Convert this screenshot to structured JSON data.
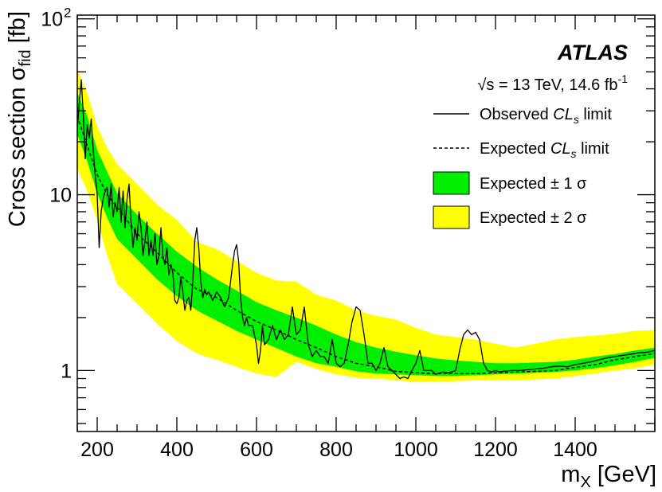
{
  "chart_data": {
    "type": "line",
    "experiment_label": "ATLAS",
    "energy_label": "√s = 13 TeV, 14.6 fb",
    "energy_label_sup": "-1",
    "xlabel": "m",
    "xlabel_sub": "X",
    "xlabel_unit": " [GeV]",
    "ylabel": "Cross section σ",
    "ylabel_sub": "fid",
    "ylabel_unit": " [fb]",
    "x_scale": "linear",
    "y_scale": "log",
    "xlim": [
      150,
      1600
    ],
    "ylim": [
      0.45,
      105
    ],
    "x_ticks": [
      200,
      400,
      600,
      800,
      1000,
      1200,
      1400
    ],
    "y_ticks": [
      {
        "value": 1,
        "label": "1"
      },
      {
        "value": 10,
        "label": "10"
      },
      {
        "value": 100,
        "label": "10",
        "sup": "2"
      }
    ],
    "grid": false,
    "legend_position": "top-right",
    "legend": [
      {
        "style": "solid-line",
        "text": "Observed ",
        "italic": "CL",
        "sub": "s",
        "tail": " limit"
      },
      {
        "style": "dashed-line",
        "text": "Expected ",
        "italic": "CL",
        "sub": "s",
        "tail": " limit"
      },
      {
        "style": "box",
        "color": "#00ee00",
        "text": "Expected ± 1 σ"
      },
      {
        "style": "box",
        "color": "#ffff00",
        "text": "Expected ± 2 σ"
      }
    ],
    "colors": {
      "band_1sigma": "#00ee00",
      "band_2sigma": "#ffff00",
      "lines": "#000000"
    },
    "series": [
      {
        "name": "Observed CLs limit",
        "style": "solid",
        "x": [
          150,
          155,
          160,
          165,
          170,
          175,
          180,
          185,
          190,
          195,
          200,
          205,
          210,
          215,
          220,
          225,
          230,
          235,
          240,
          245,
          250,
          255,
          260,
          265,
          270,
          275,
          280,
          285,
          290,
          295,
          300,
          305,
          310,
          315,
          320,
          325,
          330,
          335,
          340,
          345,
          350,
          355,
          360,
          365,
          370,
          375,
          380,
          385,
          390,
          395,
          400,
          405,
          410,
          415,
          420,
          425,
          430,
          435,
          440,
          445,
          450,
          455,
          460,
          465,
          470,
          475,
          480,
          490,
          500,
          510,
          520,
          530,
          540,
          545,
          550,
          555,
          560,
          565,
          570,
          575,
          580,
          590,
          600,
          605,
          610,
          615,
          620,
          630,
          640,
          650,
          660,
          670,
          680,
          690,
          700,
          710,
          720,
          730,
          740,
          750,
          760,
          770,
          780,
          790,
          800,
          810,
          820,
          830,
          840,
          850,
          860,
          870,
          880,
          890,
          900,
          910,
          920,
          930,
          940,
          950,
          960,
          970,
          980,
          990,
          1000,
          1010,
          1020,
          1030,
          1040,
          1050,
          1060,
          1070,
          1080,
          1090,
          1100,
          1110,
          1120,
          1130,
          1140,
          1150,
          1160,
          1170,
          1180,
          1190,
          1200,
          1210,
          1220,
          1240,
          1260,
          1280,
          1300,
          1320,
          1340,
          1360,
          1380,
          1400,
          1420,
          1440,
          1460,
          1480,
          1500,
          1520,
          1540,
          1560,
          1580,
          1600
        ],
        "y": [
          24,
          33,
          45,
          29,
          16,
          25,
          21,
          27,
          18,
          13,
          10,
          5,
          8,
          9.5,
          10.5,
          11,
          8.5,
          11.5,
          7.5,
          9,
          8,
          11,
          7,
          10.5,
          6.5,
          9.5,
          11.5,
          7,
          5,
          6.5,
          5.5,
          8,
          6.5,
          4.5,
          5.5,
          7,
          4.5,
          5.5,
          4.5,
          6,
          4,
          4.5,
          6.5,
          4.5,
          4,
          5,
          3.5,
          4,
          3.6,
          2.5,
          2.4,
          2.6,
          3.4,
          2.8,
          2.2,
          2.5,
          2.6,
          2.2,
          3.2,
          5.5,
          6.5,
          5,
          3.2,
          2.6,
          2.9,
          2.7,
          2.8,
          2.5,
          2.8,
          2.6,
          2.3,
          2.6,
          4,
          4.8,
          5.2,
          4.2,
          2.6,
          2,
          1.8,
          2,
          1.8,
          1.8,
          1.4,
          1.1,
          1.3,
          1.8,
          1.4,
          1.5,
          1.8,
          1.5,
          1.7,
          1.5,
          1.6,
          2.3,
          1.6,
          1.7,
          2.3,
          1.4,
          1.2,
          1.3,
          1.2,
          1.2,
          1.1,
          1.5,
          1.1,
          1.05,
          1.1,
          1.4,
          1.9,
          2.3,
          2.2,
          1.6,
          1.1,
          1.1,
          1.0,
          1.1,
          1.35,
          1.05,
          1.0,
          0.95,
          0.9,
          0.92,
          0.9,
          1.0,
          1.1,
          1.3,
          1.0,
          1.0,
          1.0,
          0.95,
          0.97,
          0.98,
          0.97,
          0.98,
          1.0,
          1.3,
          1.6,
          1.7,
          1.6,
          1.65,
          1.5,
          1.1,
          1.0,
          0.98,
          1.0,
          0.98,
          0.99,
          1.0,
          1.0,
          1.01,
          1.02,
          1.03,
          1.05,
          1.06,
          1.05,
          1.08,
          1.1,
          1.12,
          1.15,
          1.18,
          1.2,
          1.22,
          1.24,
          1.26,
          1.27,
          1.3
        ]
      },
      {
        "name": "Expected CLs limit",
        "style": "dashed",
        "x": [
          150,
          175,
          200,
          225,
          250,
          300,
          350,
          400,
          450,
          500,
          550,
          600,
          650,
          700,
          750,
          800,
          850,
          900,
          950,
          1000,
          1050,
          1100,
          1150,
          1200,
          1250,
          1300,
          1350,
          1400,
          1450,
          1500,
          1550,
          1600
        ],
        "y": [
          28,
          19,
          13,
          10,
          8.5,
          6,
          4.7,
          3.6,
          2.9,
          2.6,
          2.2,
          1.9,
          1.7,
          1.5,
          1.35,
          1.2,
          1.1,
          1.05,
          0.99,
          0.97,
          0.96,
          0.96,
          0.96,
          0.97,
          0.98,
          0.99,
          1.0,
          1.04,
          1.08,
          1.15,
          1.2,
          1.25
        ]
      }
    ],
    "bands": [
      {
        "name": "Expected ± 2 σ",
        "x": [
          150,
          175,
          200,
          225,
          250,
          300,
          350,
          400,
          450,
          500,
          550,
          600,
          650,
          700,
          750,
          800,
          850,
          900,
          950,
          1000,
          1050,
          1100,
          1150,
          1200,
          1250,
          1300,
          1350,
          1400,
          1450,
          1500,
          1550,
          1600
        ],
        "low": [
          14,
          10.5,
          7.2,
          4.5,
          3.1,
          2.4,
          1.85,
          1.47,
          1.25,
          1.15,
          1.05,
          0.96,
          0.92,
          1.12,
          1.02,
          0.95,
          0.91,
          0.9,
          0.88,
          0.86,
          0.86,
          0.87,
          0.88,
          0.88,
          0.88,
          0.89,
          0.9,
          0.93,
          0.96,
          1.0,
          1.03,
          1.08
        ],
        "high": [
          52,
          38,
          24.5,
          18.5,
          15,
          11.5,
          8.8,
          7.2,
          5.4,
          4.9,
          4.2,
          3.6,
          3.25,
          3.2,
          2.7,
          2.5,
          2.2,
          2.05,
          1.95,
          1.75,
          1.6,
          1.55,
          1.5,
          1.42,
          1.35,
          1.42,
          1.5,
          1.55,
          1.58,
          1.62,
          1.68,
          1.7
        ]
      },
      {
        "name": "Expected ± 1 σ",
        "x": [
          150,
          175,
          200,
          225,
          250,
          300,
          350,
          400,
          450,
          500,
          550,
          600,
          650,
          700,
          750,
          800,
          850,
          900,
          950,
          1000,
          1050,
          1100,
          1150,
          1200,
          1250,
          1300,
          1350,
          1400,
          1450,
          1500,
          1550,
          1600
        ],
        "low": [
          22,
          15.5,
          10.2,
          7.4,
          5.6,
          4.3,
          3.3,
          2.65,
          2.2,
          1.92,
          1.68,
          1.5,
          1.34,
          1.2,
          1.1,
          1.05,
          0.99,
          0.96,
          0.95,
          0.94,
          0.93,
          0.93,
          0.94,
          0.95,
          0.96,
          0.97,
          0.98,
          1.0,
          1.03,
          1.07,
          1.12,
          1.18
        ],
        "high": [
          38,
          28,
          18,
          13.5,
          10.2,
          7.7,
          6.0,
          4.75,
          3.9,
          3.3,
          2.85,
          2.45,
          2.2,
          2.0,
          1.8,
          1.6,
          1.45,
          1.35,
          1.28,
          1.22,
          1.17,
          1.14,
          1.12,
          1.1,
          1.1,
          1.11,
          1.12,
          1.15,
          1.2,
          1.24,
          1.3,
          1.35
        ]
      }
    ]
  }
}
